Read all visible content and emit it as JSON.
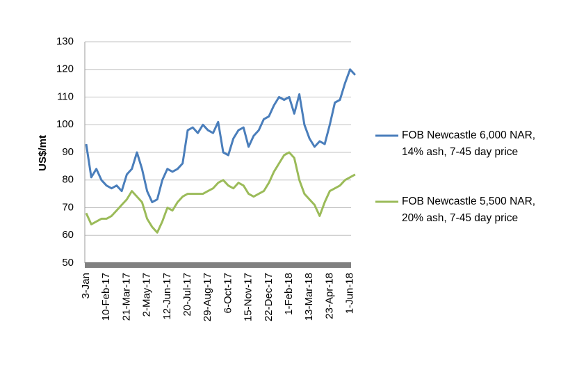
{
  "chart_data": {
    "type": "line",
    "y_label": "US$/mt",
    "categories": [
      "3-Jan",
      null,
      null,
      null,
      "10-Feb-17",
      null,
      null,
      null,
      "21-Mar-17",
      null,
      null,
      null,
      "2-May-17",
      null,
      null,
      null,
      "12-Jun-17",
      null,
      null,
      null,
      "20-Jul-17",
      null,
      null,
      null,
      "29-Aug-17",
      null,
      null,
      null,
      "6-Oct-17",
      null,
      null,
      null,
      "15-Nov-17",
      null,
      null,
      null,
      "22-Dec-17",
      null,
      null,
      null,
      "1-Feb-18",
      null,
      null,
      null,
      "13-Mar-18",
      null,
      null,
      null,
      "23-Apr-18",
      null,
      null,
      null,
      "1-Jun-18",
      null
    ],
    "series": [
      {
        "name": "FOB Newcastle 6,000 NAR, 14% ash, 7-45 day price",
        "color": "#4a7ebb",
        "values": [
          93,
          81,
          84,
          80,
          78,
          77,
          78,
          76,
          82,
          84,
          90,
          84,
          76,
          72,
          73,
          80,
          84,
          83,
          84,
          86,
          98,
          99,
          97,
          100,
          98,
          97,
          101,
          90,
          89,
          95,
          98,
          99,
          92,
          96,
          98,
          102,
          103,
          107,
          110,
          109,
          110,
          104,
          111,
          100,
          95,
          92,
          94,
          93,
          100,
          108,
          109,
          115,
          120,
          118
        ]
      },
      {
        "name": "FOB Newcastle 5,500 NAR, 20% ash, 7-45 day price",
        "color": "#9bbb59",
        "values": [
          68,
          64,
          65,
          66,
          66,
          67,
          69,
          71,
          73,
          76,
          74,
          72,
          66,
          63,
          61,
          65,
          70,
          69,
          72,
          74,
          75,
          75,
          75,
          75,
          76,
          77,
          79,
          80,
          78,
          77,
          79,
          78,
          75,
          74,
          75,
          76,
          79,
          83,
          86,
          89,
          90,
          88,
          80,
          75,
          73,
          71,
          67,
          72,
          76,
          77,
          78,
          80,
          81,
          82
        ]
      }
    ],
    "ylim": [
      50,
      130
    ],
    "yticks": [
      50,
      60,
      70,
      80,
      90,
      100,
      110,
      120,
      130
    ],
    "grid": true
  }
}
